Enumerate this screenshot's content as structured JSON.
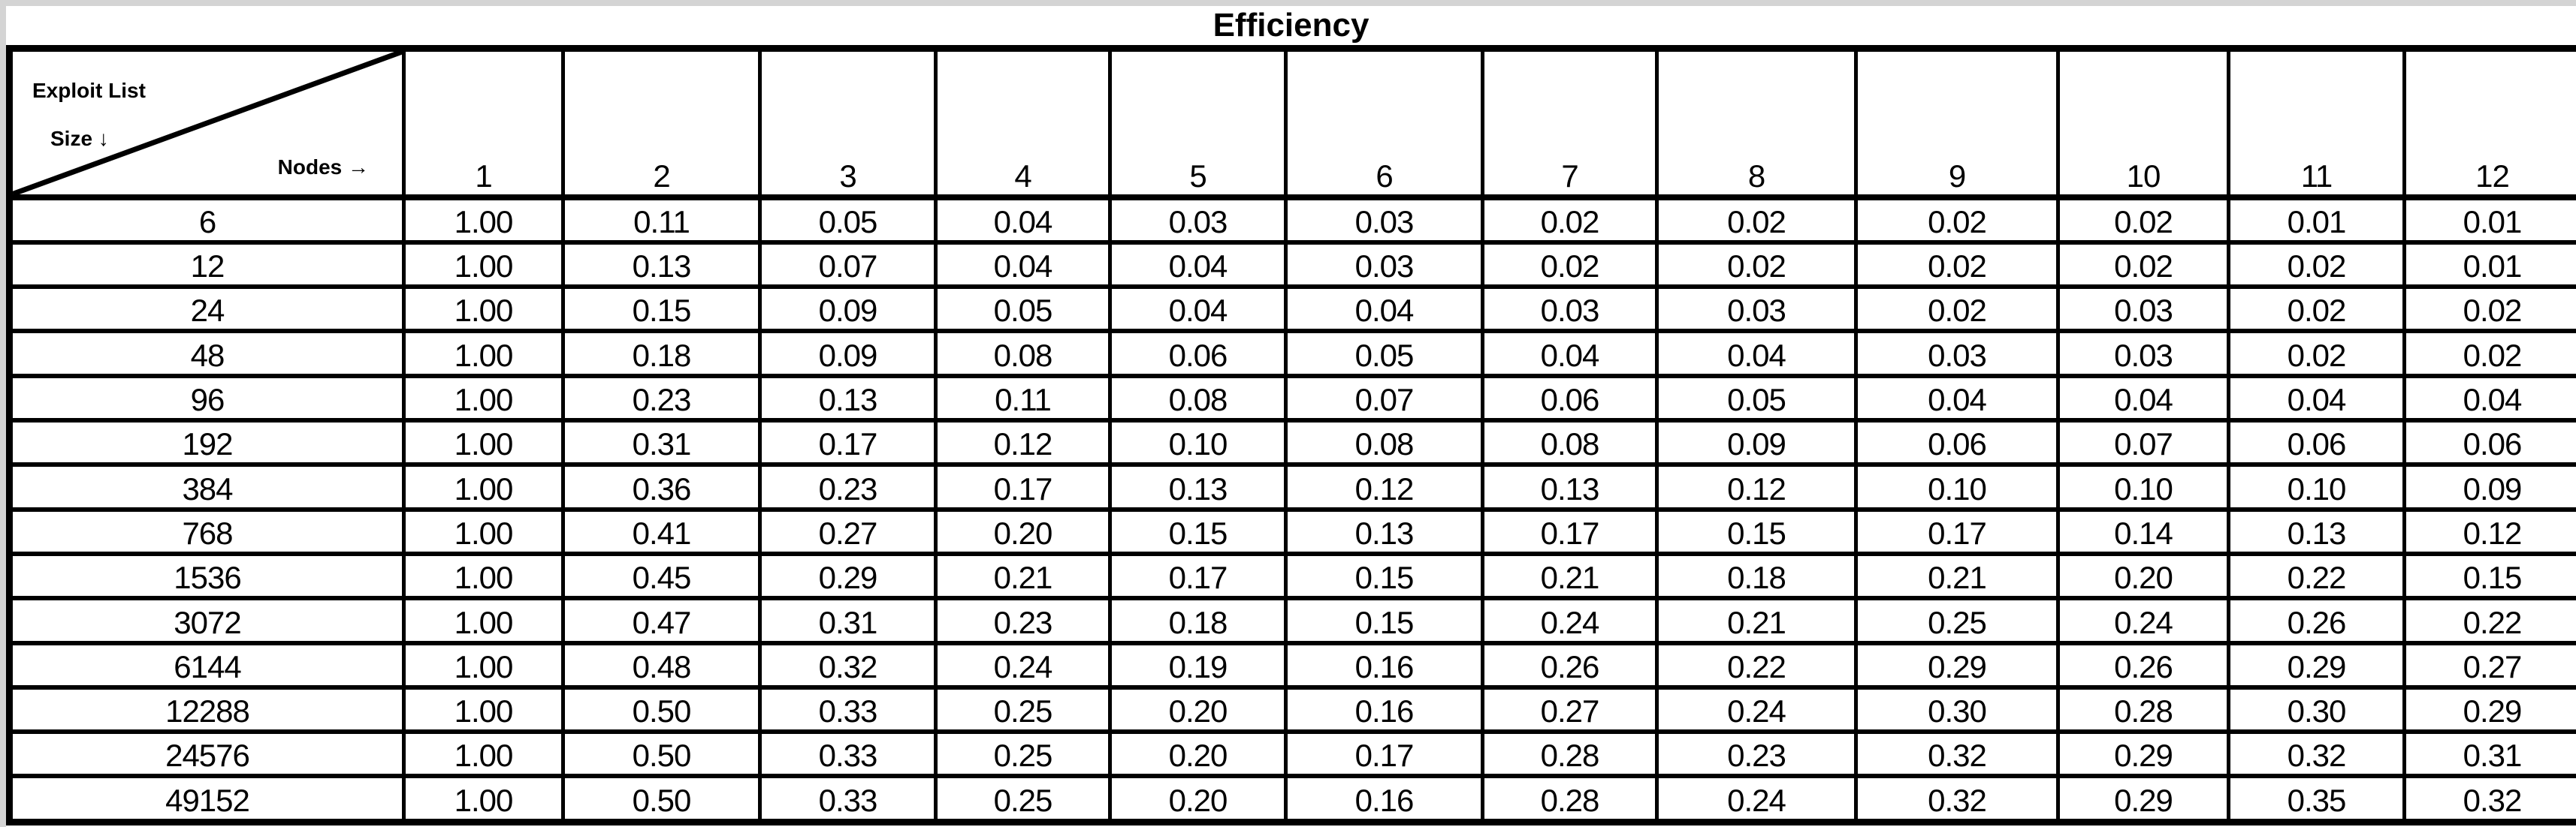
{
  "page": {
    "title": "Efficiency"
  },
  "corner": {
    "top_label": "Exploit List",
    "row_axis_label": "Size ↓",
    "col_axis_label": "Nodes →"
  },
  "columns": [
    "1",
    "2",
    "3",
    "4",
    "5",
    "6",
    "7",
    "8",
    "9",
    "10",
    "11",
    "12"
  ],
  "rows": [
    {
      "size": "6",
      "values": [
        "1.00",
        "0.11",
        "0.05",
        "0.04",
        "0.03",
        "0.03",
        "0.02",
        "0.02",
        "0.02",
        "0.02",
        "0.01",
        "0.01"
      ]
    },
    {
      "size": "12",
      "values": [
        "1.00",
        "0.13",
        "0.07",
        "0.04",
        "0.04",
        "0.03",
        "0.02",
        "0.02",
        "0.02",
        "0.02",
        "0.02",
        "0.01"
      ]
    },
    {
      "size": "24",
      "values": [
        "1.00",
        "0.15",
        "0.09",
        "0.05",
        "0.04",
        "0.04",
        "0.03",
        "0.03",
        "0.02",
        "0.03",
        "0.02",
        "0.02"
      ]
    },
    {
      "size": "48",
      "values": [
        "1.00",
        "0.18",
        "0.09",
        "0.08",
        "0.06",
        "0.05",
        "0.04",
        "0.04",
        "0.03",
        "0.03",
        "0.02",
        "0.02"
      ]
    },
    {
      "size": "96",
      "values": [
        "1.00",
        "0.23",
        "0.13",
        "0.11",
        "0.08",
        "0.07",
        "0.06",
        "0.05",
        "0.04",
        "0.04",
        "0.04",
        "0.04"
      ]
    },
    {
      "size": "192",
      "values": [
        "1.00",
        "0.31",
        "0.17",
        "0.12",
        "0.10",
        "0.08",
        "0.08",
        "0.09",
        "0.06",
        "0.07",
        "0.06",
        "0.06"
      ]
    },
    {
      "size": "384",
      "values": [
        "1.00",
        "0.36",
        "0.23",
        "0.17",
        "0.13",
        "0.12",
        "0.13",
        "0.12",
        "0.10",
        "0.10",
        "0.10",
        "0.09"
      ]
    },
    {
      "size": "768",
      "values": [
        "1.00",
        "0.41",
        "0.27",
        "0.20",
        "0.15",
        "0.13",
        "0.17",
        "0.15",
        "0.17",
        "0.14",
        "0.13",
        "0.12"
      ]
    },
    {
      "size": "1536",
      "values": [
        "1.00",
        "0.45",
        "0.29",
        "0.21",
        "0.17",
        "0.15",
        "0.21",
        "0.18",
        "0.21",
        "0.20",
        "0.22",
        "0.15"
      ]
    },
    {
      "size": "3072",
      "values": [
        "1.00",
        "0.47",
        "0.31",
        "0.23",
        "0.18",
        "0.15",
        "0.24",
        "0.21",
        "0.25",
        "0.24",
        "0.26",
        "0.22"
      ]
    },
    {
      "size": "6144",
      "values": [
        "1.00",
        "0.48",
        "0.32",
        "0.24",
        "0.19",
        "0.16",
        "0.26",
        "0.22",
        "0.29",
        "0.26",
        "0.29",
        "0.27"
      ]
    },
    {
      "size": "12288",
      "values": [
        "1.00",
        "0.50",
        "0.33",
        "0.25",
        "0.20",
        "0.16",
        "0.27",
        "0.24",
        "0.30",
        "0.28",
        "0.30",
        "0.29"
      ]
    },
    {
      "size": "24576",
      "values": [
        "1.00",
        "0.50",
        "0.33",
        "0.25",
        "0.20",
        "0.17",
        "0.28",
        "0.23",
        "0.32",
        "0.29",
        "0.32",
        "0.31"
      ]
    },
    {
      "size": "49152",
      "values": [
        "1.00",
        "0.50",
        "0.33",
        "0.25",
        "0.20",
        "0.16",
        "0.28",
        "0.24",
        "0.32",
        "0.29",
        "0.35",
        "0.32"
      ]
    }
  ],
  "chart_data": {
    "type": "table",
    "title": "Efficiency",
    "row_header": "Exploit List Size",
    "col_header": "Nodes",
    "columns": [
      1,
      2,
      3,
      4,
      5,
      6,
      7,
      8,
      9,
      10,
      11,
      12
    ],
    "row_labels": [
      6,
      12,
      24,
      48,
      96,
      192,
      384,
      768,
      1536,
      3072,
      6144,
      12288,
      24576,
      49152
    ],
    "values": [
      [
        1.0,
        0.11,
        0.05,
        0.04,
        0.03,
        0.03,
        0.02,
        0.02,
        0.02,
        0.02,
        0.01,
        0.01
      ],
      [
        1.0,
        0.13,
        0.07,
        0.04,
        0.04,
        0.03,
        0.02,
        0.02,
        0.02,
        0.02,
        0.02,
        0.01
      ],
      [
        1.0,
        0.15,
        0.09,
        0.05,
        0.04,
        0.04,
        0.03,
        0.03,
        0.02,
        0.03,
        0.02,
        0.02
      ],
      [
        1.0,
        0.18,
        0.09,
        0.08,
        0.06,
        0.05,
        0.04,
        0.04,
        0.03,
        0.03,
        0.02,
        0.02
      ],
      [
        1.0,
        0.23,
        0.13,
        0.11,
        0.08,
        0.07,
        0.06,
        0.05,
        0.04,
        0.04,
        0.04,
        0.04
      ],
      [
        1.0,
        0.31,
        0.17,
        0.12,
        0.1,
        0.08,
        0.08,
        0.09,
        0.06,
        0.07,
        0.06,
        0.06
      ],
      [
        1.0,
        0.36,
        0.23,
        0.17,
        0.13,
        0.12,
        0.13,
        0.12,
        0.1,
        0.1,
        0.1,
        0.09
      ],
      [
        1.0,
        0.41,
        0.27,
        0.2,
        0.15,
        0.13,
        0.17,
        0.15,
        0.17,
        0.14,
        0.13,
        0.12
      ],
      [
        1.0,
        0.45,
        0.29,
        0.21,
        0.17,
        0.15,
        0.21,
        0.18,
        0.21,
        0.2,
        0.22,
        0.15
      ],
      [
        1.0,
        0.47,
        0.31,
        0.23,
        0.18,
        0.15,
        0.24,
        0.21,
        0.25,
        0.24,
        0.26,
        0.22
      ],
      [
        1.0,
        0.48,
        0.32,
        0.24,
        0.19,
        0.16,
        0.26,
        0.22,
        0.29,
        0.26,
        0.29,
        0.27
      ],
      [
        1.0,
        0.5,
        0.33,
        0.25,
        0.2,
        0.16,
        0.27,
        0.24,
        0.3,
        0.28,
        0.3,
        0.29
      ],
      [
        1.0,
        0.5,
        0.33,
        0.25,
        0.2,
        0.17,
        0.28,
        0.23,
        0.32,
        0.29,
        0.32,
        0.31
      ],
      [
        1.0,
        0.5,
        0.33,
        0.25,
        0.2,
        0.16,
        0.28,
        0.24,
        0.32,
        0.29,
        0.35,
        0.32
      ]
    ]
  },
  "colors": {
    "border": "#000000",
    "background": "#ffffff",
    "margin": "#d4d4d4",
    "text": "#000000"
  }
}
